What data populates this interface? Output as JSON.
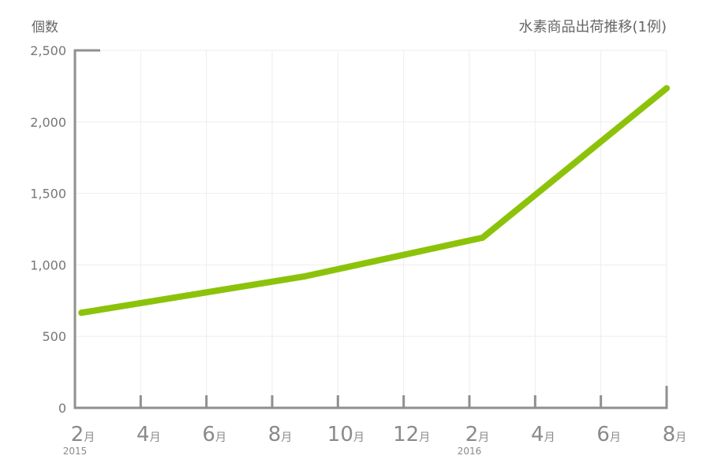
{
  "chart_data": {
    "type": "line",
    "title": "水素商品出荷推移(1例)",
    "ylabel": "個数",
    "xlabel": "",
    "ylim": [
      0,
      2500
    ],
    "yticks": [
      {
        "value": 0,
        "label": "0"
      },
      {
        "value": 500,
        "label": "500"
      },
      {
        "value": 1000,
        "label": "1,000"
      },
      {
        "value": 1500,
        "label": "1,500"
      },
      {
        "value": 2000,
        "label": "2,000"
      },
      {
        "value": 2500,
        "label": "2,500"
      }
    ],
    "xlim": [
      0,
      18
    ],
    "xticks": [
      {
        "x": 0,
        "num": "2",
        "unit": "月",
        "year": "2015"
      },
      {
        "x": 2,
        "num": "4",
        "unit": "月",
        "year": ""
      },
      {
        "x": 4,
        "num": "6",
        "unit": "月",
        "year": ""
      },
      {
        "x": 6,
        "num": "8",
        "unit": "月",
        "year": ""
      },
      {
        "x": 8,
        "num": "10",
        "unit": "月",
        "year": ""
      },
      {
        "x": 10,
        "num": "12",
        "unit": "月",
        "year": ""
      },
      {
        "x": 12,
        "num": "2",
        "unit": "月",
        "year": "2016"
      },
      {
        "x": 14,
        "num": "4",
        "unit": "月",
        "year": ""
      },
      {
        "x": 16,
        "num": "6",
        "unit": "月",
        "year": ""
      },
      {
        "x": 18,
        "num": "8",
        "unit": "月",
        "year": ""
      }
    ],
    "grid": true,
    "series": [
      {
        "color": "#8cc30a",
        "points": [
          {
            "x": 0.2,
            "y": 665
          },
          {
            "x": 7.0,
            "y": 920
          },
          {
            "x": 12.4,
            "y": 1190
          },
          {
            "x": 18.0,
            "y": 2235
          }
        ]
      }
    ]
  }
}
